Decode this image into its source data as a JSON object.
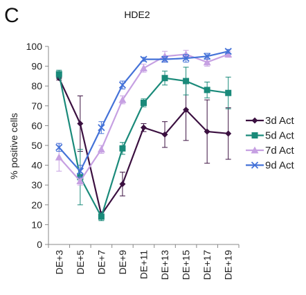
{
  "chart_data": {
    "type": "line",
    "panel_letter": "C",
    "title": "HDE2",
    "xlabel": "",
    "ylabel": "% positive cells",
    "ylim": [
      0,
      100
    ],
    "yticks": [
      0,
      10,
      20,
      30,
      40,
      50,
      60,
      70,
      80,
      90,
      100
    ],
    "categories": [
      "DE+3",
      "DE+5",
      "DE+7",
      "DE+9",
      "DE+11",
      "DE+13",
      "DE+15",
      "DE+17",
      "DE+19"
    ],
    "grid": false,
    "legend_position": "right",
    "series": [
      {
        "name": "3d Act",
        "color": "#3b1040",
        "marker": "diamond",
        "values": [
          84,
          61,
          15,
          30.5,
          59,
          55.5,
          68,
          57,
          56
        ],
        "errors": [
          1,
          14,
          1.5,
          6,
          2,
          6.5,
          15.5,
          16,
          13
        ]
      },
      {
        "name": "5d Act",
        "color": "#1a8a7a",
        "marker": "square",
        "values": [
          86,
          34,
          14,
          48.5,
          71.5,
          84,
          82.5,
          78,
          76.5
        ],
        "errors": [
          2,
          14,
          2,
          3,
          2,
          3.5,
          7,
          4,
          8
        ]
      },
      {
        "name": "7d Act",
        "color": "#c6a0e2",
        "marker": "triangle",
        "values": [
          44,
          32,
          48,
          73,
          89,
          95,
          96,
          92,
          96
        ],
        "errors": [
          7,
          2,
          2,
          2,
          2,
          2.5,
          2,
          2,
          1.5
        ]
      },
      {
        "name": "9d Act",
        "color": "#4472d8",
        "marker": "x",
        "values": [
          49,
          37,
          59,
          80.5,
          93.5,
          93.5,
          94,
          95,
          97.5
        ],
        "errors": [
          2,
          3,
          3,
          2,
          1,
          1.5,
          2,
          1.5,
          1
        ]
      }
    ]
  }
}
